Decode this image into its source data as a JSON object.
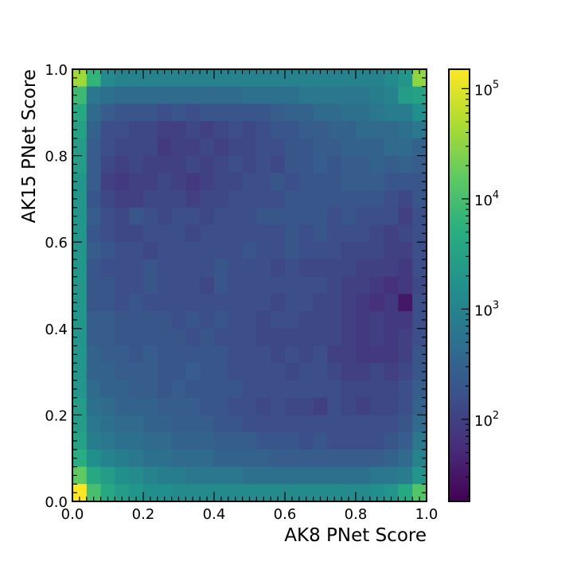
{
  "chart_data": {
    "type": "heatmap",
    "xlabel": "AK8 PNet Score",
    "ylabel": "AK15 PNet Score",
    "xlim": [
      0.0,
      1.0
    ],
    "ylim": [
      0.0,
      1.0
    ],
    "bins": 25,
    "x_ticks": [
      "0.0",
      "0.2",
      "0.4",
      "0.6",
      "0.8",
      "1.0"
    ],
    "y_ticks": [
      "0.0",
      "0.2",
      "0.4",
      "0.6",
      "0.8",
      "1.0"
    ],
    "colorbar": {
      "scale": "log",
      "range": [
        18,
        150000
      ],
      "ticks": [
        {
          "base": "10",
          "exp": "2",
          "value": 100
        },
        {
          "base": "10",
          "exp": "3",
          "value": 1000
        },
        {
          "base": "10",
          "exp": "4",
          "value": 10000
        },
        {
          "base": "10",
          "exp": "5",
          "value": 100000
        }
      ],
      "colormap": "viridis"
    },
    "z_log10_rows_top_to_bottom": [
      [
        4.6,
        3.8,
        3.1,
        3.0,
        3.0,
        3.0,
        3.0,
        3.0,
        3.0,
        3.0,
        3.0,
        3.0,
        3.0,
        3.0,
        3.0,
        3.0,
        3.0,
        3.0,
        3.0,
        3.0,
        3.0,
        3.0,
        3.1,
        3.3,
        4.5
      ],
      [
        3.9,
        2.8,
        2.7,
        2.6,
        2.6,
        2.6,
        2.6,
        2.6,
        2.6,
        2.6,
        2.6,
        2.6,
        2.7,
        2.7,
        2.7,
        2.7,
        2.8,
        2.8,
        2.8,
        2.8,
        2.8,
        2.9,
        3.0,
        3.4,
        3.5
      ],
      [
        3.6,
        2.6,
        2.4,
        2.3,
        2.3,
        2.3,
        2.2,
        2.3,
        2.2,
        2.3,
        2.3,
        2.3,
        2.3,
        2.3,
        2.4,
        2.5,
        2.5,
        2.6,
        2.6,
        2.7,
        2.7,
        2.8,
        2.9,
        2.9,
        3.2
      ],
      [
        3.5,
        2.5,
        2.2,
        2.2,
        2.1,
        2.1,
        2.0,
        2.0,
        2.1,
        2.0,
        2.1,
        2.2,
        2.1,
        2.2,
        2.3,
        2.3,
        2.4,
        2.4,
        2.5,
        2.5,
        2.6,
        2.6,
        2.6,
        2.7,
        2.8
      ],
      [
        3.4,
        2.4,
        2.2,
        2.1,
        2.1,
        2.1,
        1.9,
        2.0,
        2.0,
        2.1,
        2.0,
        2.1,
        2.1,
        2.2,
        2.2,
        2.3,
        2.3,
        2.4,
        2.4,
        2.5,
        2.5,
        2.5,
        2.6,
        2.6,
        2.5
      ],
      [
        3.4,
        2.4,
        2.1,
        2.0,
        2.1,
        2.0,
        2.0,
        2.0,
        2.1,
        2.0,
        2.1,
        2.2,
        2.1,
        2.2,
        2.1,
        2.3,
        2.3,
        2.4,
        2.3,
        2.4,
        2.4,
        2.5,
        2.4,
        2.5,
        2.4
      ],
      [
        3.3,
        2.4,
        2.0,
        1.9,
        2.0,
        2.0,
        2.1,
        2.0,
        1.9,
        2.0,
        2.1,
        2.1,
        2.2,
        2.2,
        2.3,
        2.2,
        2.3,
        2.3,
        2.3,
        2.4,
        2.4,
        2.4,
        2.3,
        2.3,
        2.3
      ],
      [
        3.3,
        2.3,
        2.1,
        2.0,
        2.0,
        2.1,
        2.1,
        2.1,
        2.0,
        2.1,
        2.1,
        2.2,
        2.2,
        2.2,
        2.2,
        2.3,
        2.3,
        2.3,
        2.3,
        2.3,
        2.3,
        2.3,
        2.2,
        2.1,
        2.3
      ],
      [
        3.3,
        2.4,
        2.2,
        2.1,
        2.3,
        2.2,
        2.1,
        2.2,
        2.2,
        2.1,
        2.2,
        2.2,
        2.2,
        2.3,
        2.3,
        2.3,
        2.3,
        2.3,
        2.2,
        2.3,
        2.2,
        2.2,
        2.2,
        2.0,
        2.2
      ],
      [
        3.3,
        2.3,
        2.2,
        2.1,
        2.1,
        2.2,
        2.2,
        2.2,
        2.1,
        2.2,
        2.2,
        2.2,
        2.2,
        2.2,
        2.2,
        2.3,
        2.2,
        2.3,
        2.2,
        2.2,
        2.2,
        2.1,
        2.0,
        2.1,
        2.2
      ],
      [
        3.3,
        2.4,
        2.3,
        2.2,
        2.2,
        2.1,
        2.2,
        2.2,
        2.2,
        2.2,
        2.2,
        2.2,
        2.3,
        2.2,
        2.2,
        2.3,
        2.2,
        2.2,
        2.2,
        2.1,
        2.1,
        2.1,
        2.0,
        2.0,
        2.2
      ],
      [
        3.3,
        2.3,
        2.2,
        2.2,
        2.2,
        2.3,
        2.2,
        2.2,
        2.2,
        2.2,
        2.3,
        2.2,
        2.2,
        2.2,
        2.1,
        2.2,
        2.1,
        2.1,
        2.1,
        2.1,
        2.0,
        2.0,
        2.0,
        1.9,
        2.2
      ],
      [
        3.3,
        2.3,
        2.3,
        2.2,
        2.2,
        2.3,
        2.2,
        2.2,
        2.2,
        2.1,
        2.3,
        2.2,
        2.2,
        2.2,
        2.2,
        2.2,
        2.2,
        2.2,
        2.1,
        2.0,
        2.0,
        1.9,
        1.8,
        1.9,
        2.1
      ],
      [
        3.3,
        2.3,
        2.3,
        2.2,
        2.3,
        2.2,
        2.2,
        2.2,
        2.2,
        2.2,
        2.2,
        2.2,
        2.2,
        2.2,
        2.1,
        2.2,
        2.2,
        2.1,
        2.1,
        2.0,
        1.9,
        1.8,
        1.9,
        1.5,
        2.2
      ],
      [
        3.3,
        2.4,
        2.4,
        2.3,
        2.3,
        2.3,
        2.3,
        2.2,
        2.3,
        2.2,
        2.3,
        2.2,
        2.2,
        2.1,
        2.2,
        2.2,
        2.1,
        2.1,
        2.1,
        2.0,
        1.9,
        2.0,
        1.9,
        1.9,
        2.2
      ],
      [
        3.3,
        2.4,
        2.4,
        2.3,
        2.3,
        2.3,
        2.3,
        2.3,
        2.2,
        2.3,
        2.2,
        2.2,
        2.2,
        2.1,
        2.1,
        2.1,
        2.1,
        2.1,
        2.1,
        2.0,
        1.9,
        2.0,
        1.9,
        2.0,
        2.2
      ],
      [
        3.3,
        2.5,
        2.4,
        2.4,
        2.3,
        2.4,
        2.3,
        2.3,
        2.3,
        2.3,
        2.3,
        2.2,
        2.2,
        2.2,
        2.1,
        2.2,
        2.1,
        2.2,
        2.0,
        2.0,
        1.9,
        1.9,
        1.9,
        2.0,
        2.3
      ],
      [
        3.3,
        2.5,
        2.5,
        2.4,
        2.4,
        2.4,
        2.3,
        2.3,
        2.4,
        2.3,
        2.3,
        2.2,
        2.2,
        2.2,
        2.2,
        2.1,
        2.2,
        2.2,
        2.1,
        2.0,
        2.0,
        2.1,
        2.0,
        2.1,
        2.3
      ],
      [
        3.3,
        2.6,
        2.5,
        2.5,
        2.4,
        2.4,
        2.3,
        2.4,
        2.3,
        2.3,
        2.3,
        2.3,
        2.2,
        2.2,
        2.2,
        2.2,
        2.2,
        2.2,
        2.2,
        2.1,
        2.1,
        2.1,
        2.1,
        2.2,
        2.4
      ],
      [
        3.4,
        2.7,
        2.6,
        2.5,
        2.5,
        2.5,
        2.4,
        2.4,
        2.4,
        2.3,
        2.3,
        2.2,
        2.2,
        2.1,
        2.2,
        2.1,
        2.1,
        2.0,
        2.2,
        2.1,
        2.0,
        2.1,
        2.1,
        2.2,
        2.5
      ],
      [
        3.4,
        2.8,
        2.7,
        2.6,
        2.6,
        2.5,
        2.5,
        2.4,
        2.4,
        2.4,
        2.3,
        2.3,
        2.2,
        2.2,
        2.2,
        2.2,
        2.2,
        2.2,
        2.2,
        2.2,
        2.2,
        2.2,
        2.2,
        2.3,
        2.6
      ],
      [
        3.5,
        2.9,
        2.8,
        2.7,
        2.7,
        2.6,
        2.6,
        2.5,
        2.5,
        2.5,
        2.4,
        2.4,
        2.4,
        2.3,
        2.3,
        2.3,
        2.2,
        2.3,
        2.2,
        2.2,
        2.2,
        2.2,
        2.3,
        2.4,
        2.8
      ],
      [
        3.7,
        3.2,
        3.0,
        2.9,
        2.8,
        2.7,
        2.7,
        2.6,
        2.6,
        2.6,
        2.5,
        2.5,
        2.5,
        2.5,
        2.4,
        2.4,
        2.4,
        2.4,
        2.4,
        2.4,
        2.4,
        2.4,
        2.5,
        2.6,
        3.0
      ],
      [
        4.2,
        3.6,
        3.4,
        3.2,
        3.1,
        3.0,
        2.9,
        2.9,
        2.8,
        2.8,
        2.8,
        2.8,
        2.7,
        2.7,
        2.7,
        2.7,
        2.7,
        2.7,
        2.7,
        2.7,
        2.7,
        2.8,
        2.8,
        2.9,
        3.3
      ],
      [
        5.2,
        4.0,
        3.6,
        3.4,
        3.3,
        3.2,
        3.2,
        3.1,
        3.1,
        3.1,
        3.1,
        3.1,
        3.1,
        3.1,
        3.1,
        3.1,
        3.1,
        3.1,
        3.1,
        3.1,
        3.1,
        3.2,
        3.3,
        3.6,
        4.1
      ]
    ]
  }
}
